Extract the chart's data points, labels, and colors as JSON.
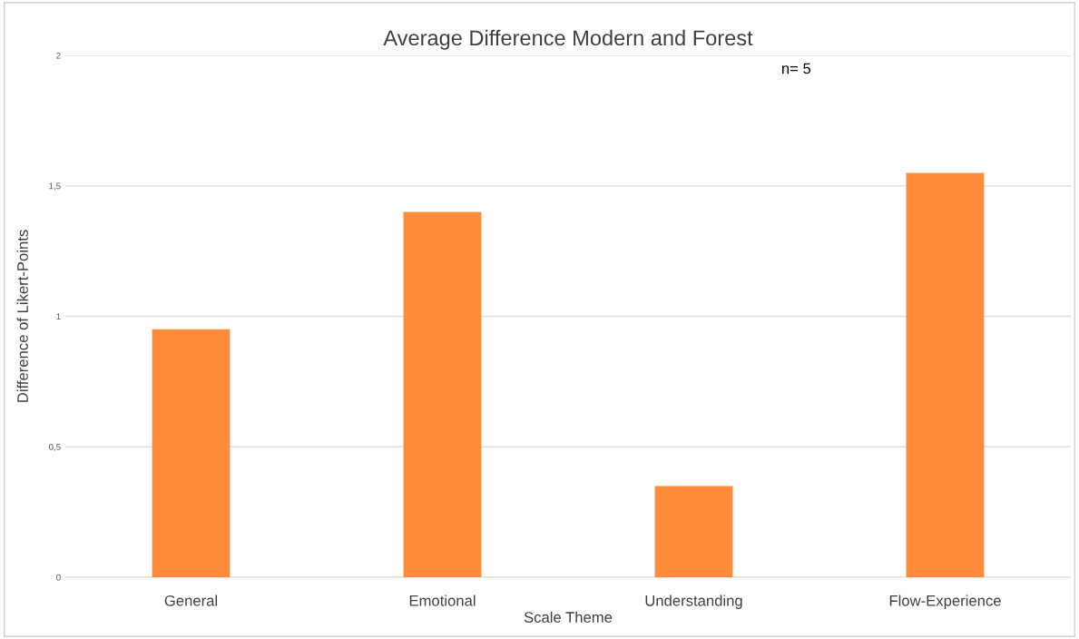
{
  "chart_data": {
    "type": "bar",
    "title": "Average Difference Modern and Forest",
    "xlabel": "Scale Theme",
    "ylabel": "Difference of Likert-Points",
    "categories": [
      "General",
      "Emotional",
      "Understanding",
      "Flow-Experience"
    ],
    "values": [
      0.95,
      1.4,
      0.35,
      1.55
    ],
    "color": "#ff8c3a",
    "ylim": [
      0,
      2
    ],
    "yticks": [
      0,
      {
        "value": 0.5,
        "label": "0,5"
      },
      1,
      {
        "value": 1.5,
        "label": "1,5"
      },
      2
    ],
    "grid": "y",
    "annotations": [
      "n= 5"
    ]
  }
}
